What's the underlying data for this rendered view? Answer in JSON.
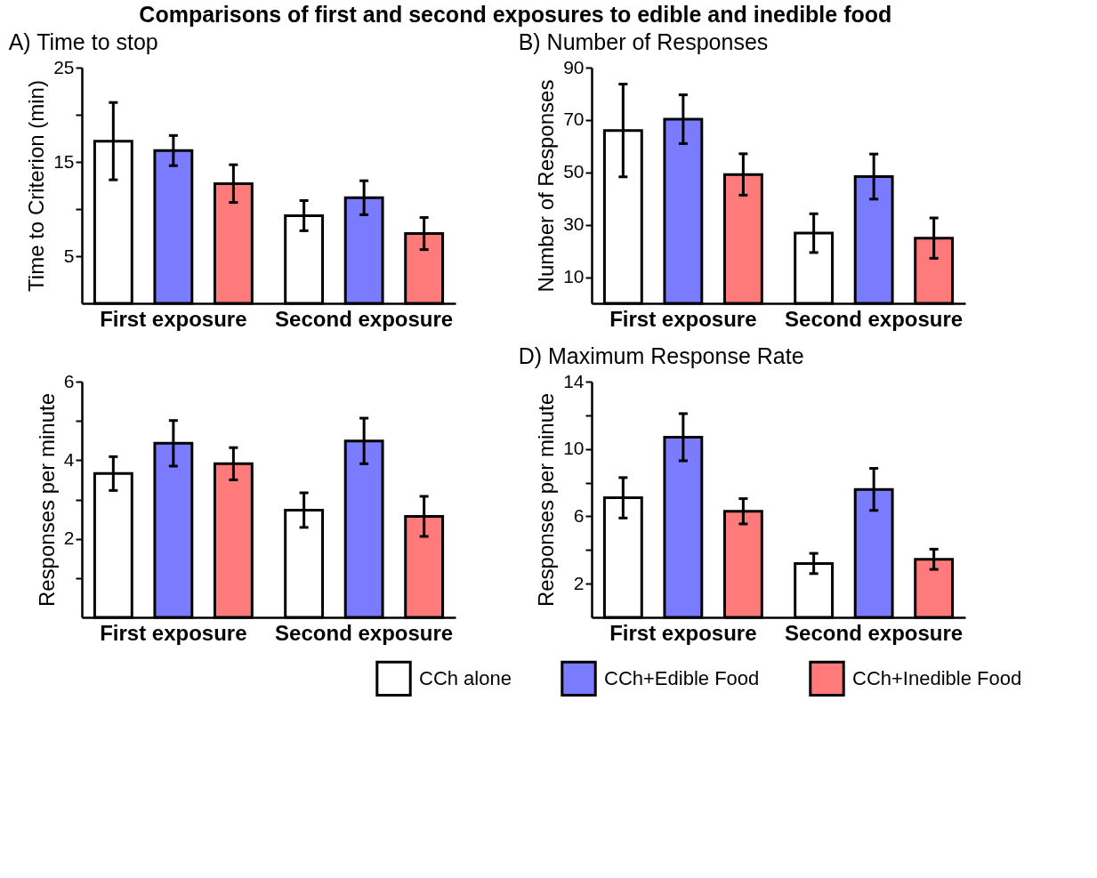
{
  "chart_data": [
    {
      "type": "bar",
      "title": "Comparisons of first and second exposures to edible and inedible food",
      "subtitle": "A) Time to stop",
      "ylabel": "Time to Criterion (min)",
      "categories": [
        "First exposure",
        "Second exposure"
      ],
      "ylim": [
        0,
        25
      ],
      "yticks": [
        5,
        {
          "value": 10,
          "label": null
        },
        15,
        {
          "value": 20,
          "label": null
        },
        25
      ],
      "series": [
        {
          "color": "#ffffff",
          "values": [
            17.2,
            9.3
          ],
          "errors": [
            4.1,
            1.6
          ]
        },
        {
          "color": "#7b7bff",
          "values": [
            16.2,
            11.2
          ],
          "errors": [
            1.6,
            1.8
          ]
        },
        {
          "color": "#ff7b7b",
          "values": [
            12.7,
            7.4
          ],
          "errors": [
            2.0,
            1.7
          ]
        }
      ]
    },
    {
      "type": "bar",
      "subtitle": "B) Number of Responses",
      "ylabel": "Number of Responses",
      "categories": [
        "First exposure",
        "Second exposure"
      ],
      "ylim": [
        0,
        90
      ],
      "yticks": [
        10,
        30,
        50,
        70,
        90
      ],
      "series": [
        {
          "color": "#ffffff",
          "values": [
            66,
            26.8
          ],
          "errors": [
            17.7,
            7.4
          ]
        },
        {
          "color": "#7b7bff",
          "values": [
            70.3,
            48.4
          ],
          "errors": [
            9.3,
            8.6
          ]
        },
        {
          "color": "#ff7b7b",
          "values": [
            49.2,
            24.9
          ],
          "errors": [
            7.9,
            7.7
          ]
        }
      ]
    },
    {
      "type": "bar",
      "ylabel": "Responses per minute",
      "categories": [
        "First exposure",
        "Second exposure"
      ],
      "ylim": [
        0,
        6
      ],
      "yticks": [
        {
          "value": 1,
          "label": null
        },
        2,
        {
          "value": 3,
          "label": null
        },
        4,
        {
          "value": 5,
          "label": null
        },
        6
      ],
      "legend": "bottom",
      "series": [
        {
          "name": "CCh alone",
          "color": "#ffffff",
          "values": [
            3.66,
            2.73
          ],
          "errors": [
            0.43,
            0.44
          ]
        },
        {
          "name": "CCh+Edible Food",
          "color": "#7b7bff",
          "values": [
            4.43,
            4.49
          ],
          "errors": [
            0.58,
            0.58
          ]
        },
        {
          "name": "CCh+Inedible Food",
          "color": "#ff7b7b",
          "values": [
            3.91,
            2.57
          ],
          "errors": [
            0.41,
            0.51
          ]
        }
      ]
    },
    {
      "type": "bar",
      "subtitle": "D) Maximum Response Rate",
      "ylabel": "Responses per minute",
      "categories": [
        "First exposure",
        "Second exposure"
      ],
      "ylim": [
        0,
        14
      ],
      "yticks": [
        2,
        {
          "value": 4,
          "label": null
        },
        6,
        {
          "value": 8,
          "label": null
        },
        10,
        {
          "value": 12,
          "label": null
        },
        14
      ],
      "series": [
        {
          "color": "#ffffff",
          "values": [
            7.1,
            3.2
          ],
          "errors": [
            1.2,
            0.6
          ]
        },
        {
          "color": "#7b7bff",
          "values": [
            10.7,
            7.6
          ],
          "errors": [
            1.4,
            1.25
          ]
        },
        {
          "color": "#ff7b7b",
          "values": [
            6.3,
            3.45
          ],
          "errors": [
            0.75,
            0.6
          ]
        }
      ]
    }
  ]
}
